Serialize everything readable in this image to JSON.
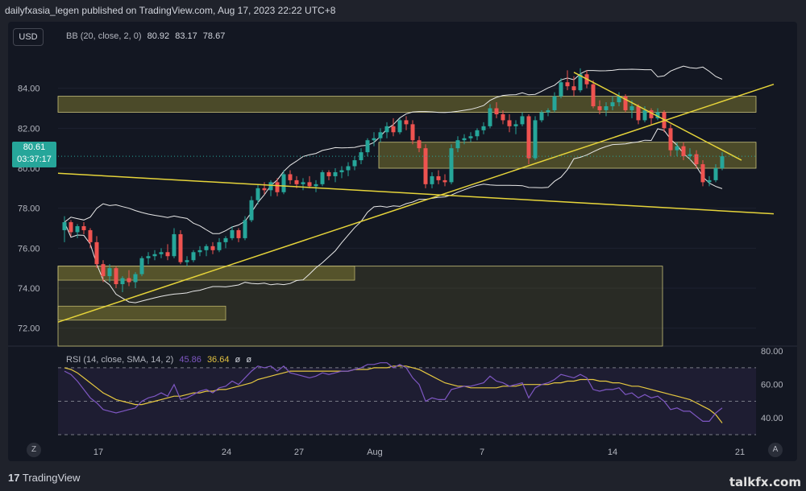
{
  "header": {
    "publisher_line": "dailyfxasia_legen published on TradingView.com, Aug 17, 2023 22:22 UTC+8"
  },
  "currency_button": "USD",
  "bb_legend": {
    "label": "BB (20, close, 2, 0)",
    "basis": "80.92",
    "upper": "83.17",
    "lower": "78.67"
  },
  "rsi_legend": {
    "label": "RSI (14, close, SMA, 14, 2)",
    "rsi": "45.86",
    "sma": "36.64",
    "extra1": "ø",
    "extra2": "ø"
  },
  "last_price_tag": {
    "price": "80.61",
    "countdown": "03:37:17"
  },
  "footer": {
    "brand": "TradingView",
    "watermark": "talkfx.com"
  },
  "scale_buttons": {
    "left": "Z",
    "right": "A"
  },
  "colors": {
    "up": "#26a69a",
    "down": "#ef5350",
    "bands": "#e8e8e8",
    "trendline": "#e6d43a",
    "zone": "#7a7530",
    "rsi": "#7e57c2",
    "rsi_ma": "#e6c840"
  },
  "chart_data": [
    {
      "type": "candlestick",
      "title": "",
      "y_axis_ticks": [
        "84.00",
        "82.00",
        "80.00",
        "78.00",
        "76.00",
        "74.00",
        "72.00"
      ],
      "ylim": [
        71.1,
        86.0
      ],
      "x_tick_labels": [
        "17",
        "24",
        "27",
        "Aug",
        "7",
        "14",
        "21"
      ],
      "candles": [
        [
          76.9,
          77.6,
          76.3,
          77.3
        ],
        [
          77.3,
          77.4,
          76.6,
          76.8
        ],
        [
          76.8,
          77.2,
          76.5,
          77.1
        ],
        [
          77.1,
          77.3,
          76.7,
          76.9
        ],
        [
          76.9,
          77.0,
          76.0,
          76.3
        ],
        [
          76.3,
          76.6,
          75.0,
          75.2
        ],
        [
          75.2,
          75.4,
          74.3,
          74.6
        ],
        [
          74.6,
          75.2,
          74.3,
          75.0
        ],
        [
          75.0,
          75.1,
          74.0,
          74.2
        ],
        [
          74.2,
          74.6,
          73.8,
          74.5
        ],
        [
          74.5,
          74.9,
          74.1,
          74.3
        ],
        [
          74.3,
          74.8,
          74.0,
          74.7
        ],
        [
          74.7,
          75.6,
          74.6,
          75.5
        ],
        [
          75.5,
          75.8,
          75.2,
          75.6
        ],
        [
          75.6,
          75.9,
          75.4,
          75.7
        ],
        [
          75.7,
          76.0,
          75.5,
          75.8
        ],
        [
          75.8,
          76.2,
          75.4,
          75.6
        ],
        [
          75.6,
          77.0,
          75.5,
          76.7
        ],
        [
          76.7,
          76.9,
          75.2,
          75.3
        ],
        [
          75.3,
          75.6,
          75.1,
          75.4
        ],
        [
          75.4,
          75.9,
          75.3,
          75.8
        ],
        [
          75.8,
          76.1,
          75.6,
          75.9
        ],
        [
          75.9,
          76.2,
          75.6,
          76.1
        ],
        [
          76.1,
          76.3,
          75.7,
          75.9
        ],
        [
          75.9,
          76.5,
          75.8,
          76.3
        ],
        [
          76.3,
          76.6,
          76.0,
          76.5
        ],
        [
          76.5,
          77.1,
          76.4,
          76.9
        ],
        [
          76.9,
          77.0,
          76.3,
          76.5
        ],
        [
          76.5,
          77.6,
          76.4,
          77.4
        ],
        [
          77.4,
          78.6,
          77.3,
          78.4
        ],
        [
          78.4,
          79.2,
          78.2,
          79.0
        ],
        [
          79.0,
          79.3,
          78.7,
          78.9
        ],
        [
          78.9,
          79.4,
          78.6,
          79.3
        ],
        [
          79.3,
          79.5,
          78.6,
          78.8
        ],
        [
          78.8,
          79.9,
          78.7,
          79.7
        ],
        [
          79.7,
          79.9,
          79.2,
          79.4
        ],
        [
          79.4,
          79.6,
          79.0,
          79.2
        ],
        [
          79.2,
          79.5,
          78.9,
          79.3
        ],
        [
          79.3,
          79.6,
          79.0,
          79.1
        ],
        [
          79.1,
          79.4,
          78.8,
          79.2
        ],
        [
          79.2,
          79.9,
          79.1,
          79.8
        ],
        [
          79.8,
          79.9,
          79.4,
          79.6
        ],
        [
          79.6,
          80.0,
          79.3,
          79.8
        ],
        [
          79.8,
          80.1,
          79.5,
          79.9
        ],
        [
          79.9,
          80.3,
          79.6,
          80.1
        ],
        [
          80.1,
          80.6,
          79.9,
          80.4
        ],
        [
          80.4,
          81.0,
          80.2,
          80.8
        ],
        [
          80.8,
          81.5,
          80.6,
          81.4
        ],
        [
          81.4,
          81.8,
          81.1,
          81.5
        ],
        [
          81.5,
          82.0,
          81.3,
          81.8
        ],
        [
          81.8,
          82.3,
          81.5,
          82.1
        ],
        [
          82.1,
          82.5,
          81.6,
          81.8
        ],
        [
          81.8,
          82.5,
          81.7,
          82.4
        ],
        [
          82.4,
          82.6,
          81.9,
          82.2
        ],
        [
          82.2,
          82.4,
          81.2,
          81.4
        ],
        [
          81.4,
          81.6,
          80.8,
          81.0
        ],
        [
          81.0,
          81.2,
          79.0,
          79.2
        ],
        [
          79.2,
          79.8,
          79.0,
          79.6
        ],
        [
          79.6,
          79.9,
          79.2,
          79.4
        ],
        [
          79.4,
          79.7,
          79.1,
          79.3
        ],
        [
          79.3,
          81.2,
          79.2,
          81.0
        ],
        [
          81.0,
          81.6,
          80.8,
          81.4
        ],
        [
          81.4,
          81.7,
          81.2,
          81.5
        ],
        [
          81.5,
          81.8,
          81.3,
          81.6
        ],
        [
          81.6,
          82.0,
          81.4,
          81.9
        ],
        [
          81.9,
          82.3,
          81.7,
          82.1
        ],
        [
          82.1,
          83.2,
          82.0,
          83.0
        ],
        [
          83.0,
          83.3,
          82.5,
          82.7
        ],
        [
          82.7,
          82.9,
          82.2,
          82.4
        ],
        [
          82.4,
          82.7,
          81.8,
          82.1
        ],
        [
          82.1,
          82.4,
          81.7,
          82.2
        ],
        [
          82.2,
          82.8,
          82.1,
          82.6
        ],
        [
          82.6,
          82.7,
          80.2,
          80.5
        ],
        [
          80.5,
          82.6,
          80.4,
          82.4
        ],
        [
          82.4,
          82.9,
          82.3,
          82.8
        ],
        [
          82.8,
          83.0,
          82.6,
          82.9
        ],
        [
          82.9,
          83.8,
          82.8,
          83.6
        ],
        [
          83.6,
          84.5,
          83.5,
          84.3
        ],
        [
          84.3,
          84.9,
          83.9,
          84.1
        ],
        [
          84.1,
          84.6,
          83.6,
          83.9
        ],
        [
          83.9,
          85.0,
          83.8,
          84.7
        ],
        [
          84.7,
          84.9,
          84.0,
          84.2
        ],
        [
          84.2,
          84.4,
          83.0,
          83.1
        ],
        [
          83.1,
          83.4,
          82.7,
          82.9
        ],
        [
          82.9,
          83.3,
          82.6,
          83.1
        ],
        [
          83.1,
          83.6,
          82.9,
          83.3
        ],
        [
          83.3,
          83.8,
          83.1,
          83.6
        ],
        [
          83.6,
          83.7,
          82.8,
          82.9
        ],
        [
          82.9,
          83.4,
          82.5,
          83.1
        ],
        [
          83.1,
          83.2,
          82.2,
          82.4
        ],
        [
          82.4,
          83.1,
          82.3,
          82.9
        ],
        [
          82.9,
          83.0,
          82.2,
          82.5
        ],
        [
          82.5,
          83.0,
          82.4,
          82.8
        ],
        [
          82.8,
          82.9,
          81.8,
          82.0
        ],
        [
          82.0,
          82.2,
          80.6,
          80.9
        ],
        [
          80.9,
          81.3,
          80.6,
          81.1
        ],
        [
          81.1,
          81.3,
          80.4,
          80.6
        ],
        [
          80.6,
          81.0,
          80.4,
          80.7
        ],
        [
          80.7,
          80.9,
          80.0,
          80.2
        ],
        [
          80.2,
          80.4,
          79.1,
          79.3
        ],
        [
          79.3,
          79.6,
          79.1,
          79.4
        ],
        [
          79.4,
          80.2,
          79.3,
          80.0
        ],
        [
          80.0,
          80.8,
          79.9,
          80.6
        ]
      ],
      "bollinger": {
        "basis": "80.92",
        "upper": "83.17",
        "lower": "78.67"
      },
      "shaded_zones": [
        [
          82.8,
          83.6
        ],
        [
          80.0,
          81.3
        ],
        [
          74.4,
          75.1
        ],
        [
          72.4,
          73.1
        ],
        [
          71.1,
          75.1
        ]
      ],
      "trendlines": [
        {
          "from": [
            0,
            79.75
          ],
          "to": [
            110,
            77.72
          ]
        },
        {
          "from": [
            0,
            72.3
          ],
          "to": [
            110,
            84.2
          ]
        },
        {
          "from": [
            79,
            84.8
          ],
          "to": [
            105,
            80.4
          ]
        }
      ]
    },
    {
      "type": "line",
      "series": [
        {
          "name": "RSI",
          "values": [
            68,
            66,
            62,
            57,
            52,
            49,
            45,
            44,
            43,
            44,
            45,
            46,
            50,
            52,
            53,
            55,
            53,
            60,
            51,
            52,
            54,
            56,
            57,
            55,
            58,
            59,
            62,
            60,
            64,
            68,
            71,
            70,
            71,
            68,
            71,
            67,
            66,
            65,
            64,
            65,
            67,
            66,
            67,
            68,
            68,
            69,
            70,
            72,
            72,
            73,
            73,
            70,
            72,
            70,
            64,
            60,
            50,
            52,
            51,
            51,
            57,
            58,
            59,
            59,
            60,
            61,
            65,
            62,
            61,
            59,
            60,
            61,
            52,
            58,
            60,
            61,
            63,
            66,
            65,
            64,
            66,
            64,
            57,
            56,
            57,
            57,
            58,
            54,
            55,
            52,
            54,
            52,
            53,
            50,
            45,
            46,
            44,
            44,
            41,
            38,
            38,
            43,
            46
          ]
        },
        {
          "name": "SMA",
          "values": [
            70,
            69,
            67,
            64,
            61,
            58,
            55,
            53,
            51,
            50,
            49,
            48,
            48,
            49,
            50,
            51,
            52,
            53,
            53,
            54,
            55,
            55,
            56,
            56,
            57,
            57,
            58,
            59,
            60,
            61,
            63,
            64,
            65,
            66,
            67,
            68,
            68,
            68,
            68,
            68,
            68,
            68,
            68,
            68,
            68,
            69,
            69,
            69,
            70,
            70,
            70,
            71,
            71,
            71,
            70,
            69,
            67,
            65,
            63,
            61,
            60,
            59,
            59,
            58,
            58,
            58,
            58,
            58,
            59,
            59,
            59,
            60,
            60,
            60,
            60,
            60,
            61,
            61,
            62,
            62,
            63,
            63,
            63,
            62,
            62,
            61,
            61,
            60,
            59,
            59,
            58,
            57,
            56,
            55,
            54,
            53,
            52,
            51,
            49,
            47,
            45,
            42,
            37
          ]
        }
      ],
      "y_axis_ticks": [
        "80.00",
        "60.00",
        "40.00"
      ],
      "ylim": [
        30,
        82
      ],
      "bands": [
        70,
        50,
        30
      ]
    }
  ]
}
